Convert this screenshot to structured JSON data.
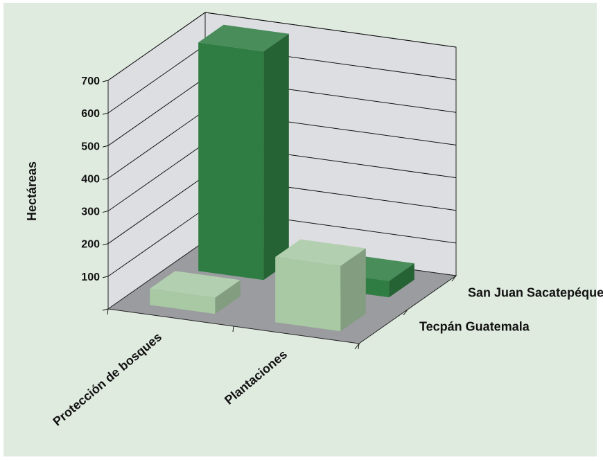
{
  "chart_data": {
    "type": "bar",
    "three_d": true,
    "ylabel": "Hectáreas",
    "yticks": [
      100,
      200,
      300,
      400,
      500,
      600,
      700
    ],
    "ylim": [
      0,
      700
    ],
    "categories": [
      "Protección de bosques",
      "Plantaciones"
    ],
    "series": [
      {
        "name": "Tecpán Guatemala",
        "values": [
          50,
          200
        ],
        "color": "#a8c9a4"
      },
      {
        "name": "San Juan Sacatepéquez",
        "values": [
          700,
          50
        ],
        "color": "#2f7d43"
      }
    ],
    "grid": true,
    "legend": "none",
    "colors": {
      "panel": "#e0ebe0",
      "walls": "#dcdee2",
      "floor": "#9a9c9f",
      "grid": "#111111"
    }
  }
}
